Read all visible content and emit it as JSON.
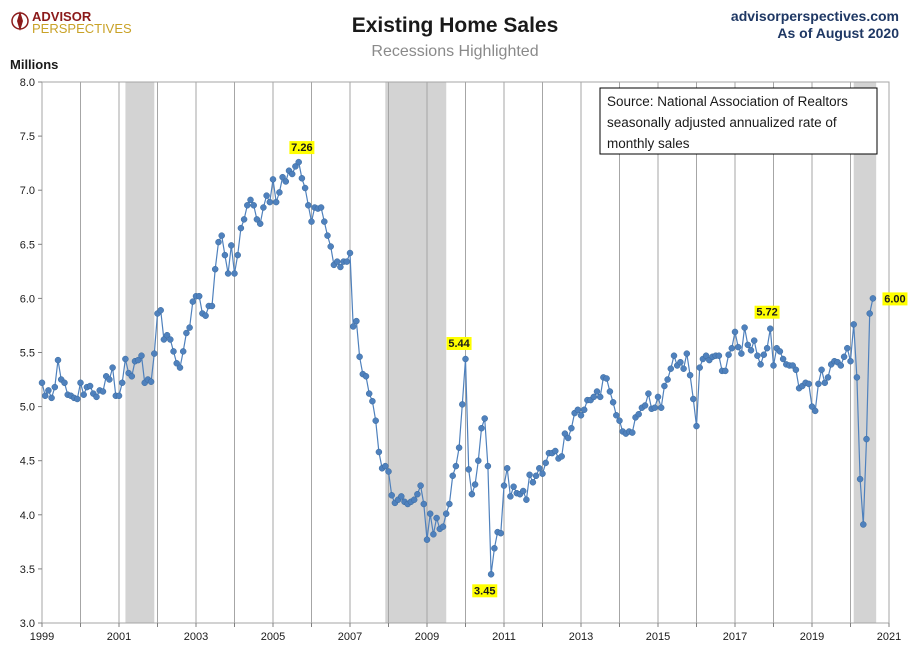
{
  "header": {
    "logo_line1": "ADVISOR",
    "logo_line2": "PERSPECTIVES",
    "website": "advisorperspectives.com",
    "as_of": "As of August 2020"
  },
  "source_note": {
    "line1": "Source: National Association of Realtors",
    "line2": "seasonally adjusted annualized rate of",
    "line3": "monthly  sales"
  },
  "colors": {
    "series": "#4f81bd",
    "recession": "#d3d3d3",
    "highlight": "#ffff00",
    "gridline": "#a6a6a6"
  },
  "chart_data": {
    "type": "line",
    "title": "Existing Home Sales",
    "subtitle": "Recessions Highlighted",
    "ylabel": "Millions",
    "xlabel": "",
    "xlim": [
      1999.0,
      2021.0
    ],
    "ylim": [
      3.0,
      8.0
    ],
    "x_ticks": [
      "1999",
      "2001",
      "2003",
      "2005",
      "2007",
      "2009",
      "2011",
      "2013",
      "2015",
      "2017",
      "2019",
      "2021"
    ],
    "y_ticks": [
      "3.0",
      "3.5",
      "4.0",
      "4.5",
      "5.0",
      "5.5",
      "6.0",
      "6.5",
      "7.0",
      "7.5",
      "8.0"
    ],
    "grid": "vertical lines at each year",
    "recessions": [
      {
        "start": 2001.167,
        "end": 2001.917
      },
      {
        "start": 2007.917,
        "end": 2009.5
      },
      {
        "start": 2020.083,
        "end": 2020.667
      }
    ],
    "annotations": [
      {
        "label": "7.26",
        "x": 2005.75,
        "y": 7.26
      },
      {
        "label": "5.44",
        "x": 2009.833,
        "y": 5.44
      },
      {
        "label": "3.45",
        "x": 2010.5,
        "y": 3.45
      },
      {
        "label": "5.72",
        "x": 2017.833,
        "y": 5.72
      },
      {
        "label": "6.00",
        "x": 2020.583,
        "y": 6.0
      }
    ],
    "series": [
      {
        "start": 1999.0,
        "step": 0.08333,
        "values": [
          5.22,
          5.1,
          5.15,
          5.08,
          5.18,
          5.43,
          5.25,
          5.22,
          5.11,
          5.1,
          5.08,
          5.07,
          5.22,
          5.11,
          5.18,
          5.19,
          5.12,
          5.09,
          5.15,
          5.14,
          5.28,
          5.25,
          5.36,
          5.1,
          5.1,
          5.22,
          5.44,
          5.31,
          5.28,
          5.42,
          5.43,
          5.47,
          5.22,
          5.25,
          5.23,
          5.49,
          5.86,
          5.89,
          5.62,
          5.66,
          5.62,
          5.51,
          5.4,
          5.36,
          5.51,
          5.68,
          5.73,
          5.97,
          6.02,
          6.02,
          5.86,
          5.84,
          5.93,
          5.93,
          6.27,
          6.52,
          6.58,
          6.4,
          6.23,
          6.49,
          6.23,
          6.4,
          6.65,
          6.73,
          6.86,
          6.91,
          6.86,
          6.73,
          6.69,
          6.84,
          6.95,
          6.89,
          7.1,
          6.89,
          6.98,
          7.12,
          7.08,
          7.18,
          7.15,
          7.22,
          7.26,
          7.11,
          7.02,
          6.86,
          6.71,
          6.84,
          6.83,
          6.84,
          6.71,
          6.58,
          6.48,
          6.31,
          6.34,
          6.29,
          6.34,
          6.34,
          6.42,
          5.74,
          5.79,
          5.46,
          5.3,
          5.28,
          5.12,
          5.05,
          4.87,
          4.58,
          4.43,
          4.45,
          4.4,
          4.18,
          4.11,
          4.14,
          4.17,
          4.12,
          4.1,
          4.12,
          4.14,
          4.19,
          4.27,
          4.1,
          3.77,
          4.01,
          3.82,
          3.97,
          3.87,
          3.89,
          4.01,
          4.1,
          4.36,
          4.45,
          4.62,
          5.02,
          5.44,
          4.42,
          4.19,
          4.28,
          4.5,
          4.8,
          4.89,
          4.45,
          3.45,
          3.69,
          3.84,
          3.83,
          4.27,
          4.43,
          4.17,
          4.26,
          4.2,
          4.19,
          4.22,
          4.14,
          4.37,
          4.3,
          4.36,
          4.43,
          4.38,
          4.48,
          4.57,
          4.57,
          4.59,
          4.52,
          4.54,
          4.75,
          4.71,
          4.8,
          4.94,
          4.97,
          4.92,
          4.97,
          5.06,
          5.06,
          5.09,
          5.14,
          5.09,
          5.27,
          5.26,
          5.14,
          5.04,
          4.92,
          4.87,
          4.77,
          4.75,
          4.77,
          4.76,
          4.9,
          4.93,
          4.99,
          5.01,
          5.12,
          4.98,
          4.99,
          5.09,
          4.99,
          5.19,
          5.25,
          5.35,
          5.47,
          5.38,
          5.41,
          5.35,
          5.49,
          5.29,
          5.07,
          4.82,
          5.36,
          5.44,
          5.47,
          5.43,
          5.46,
          5.47,
          5.47,
          5.33,
          5.33,
          5.48,
          5.54,
          5.69,
          5.55,
          5.49,
          5.73,
          5.57,
          5.52,
          5.61,
          5.47,
          5.39,
          5.48,
          5.54,
          5.72,
          5.38,
          5.54,
          5.51,
          5.44,
          5.39,
          5.38,
          5.38,
          5.34,
          5.17,
          5.19,
          5.22,
          5.21,
          5.0,
          4.96,
          5.21,
          5.34,
          5.22,
          5.27,
          5.39,
          5.42,
          5.41,
          5.38,
          5.46,
          5.54,
          5.42,
          5.76,
          5.27,
          4.33,
          3.91,
          4.7,
          5.86,
          6.0
        ]
      }
    ]
  }
}
